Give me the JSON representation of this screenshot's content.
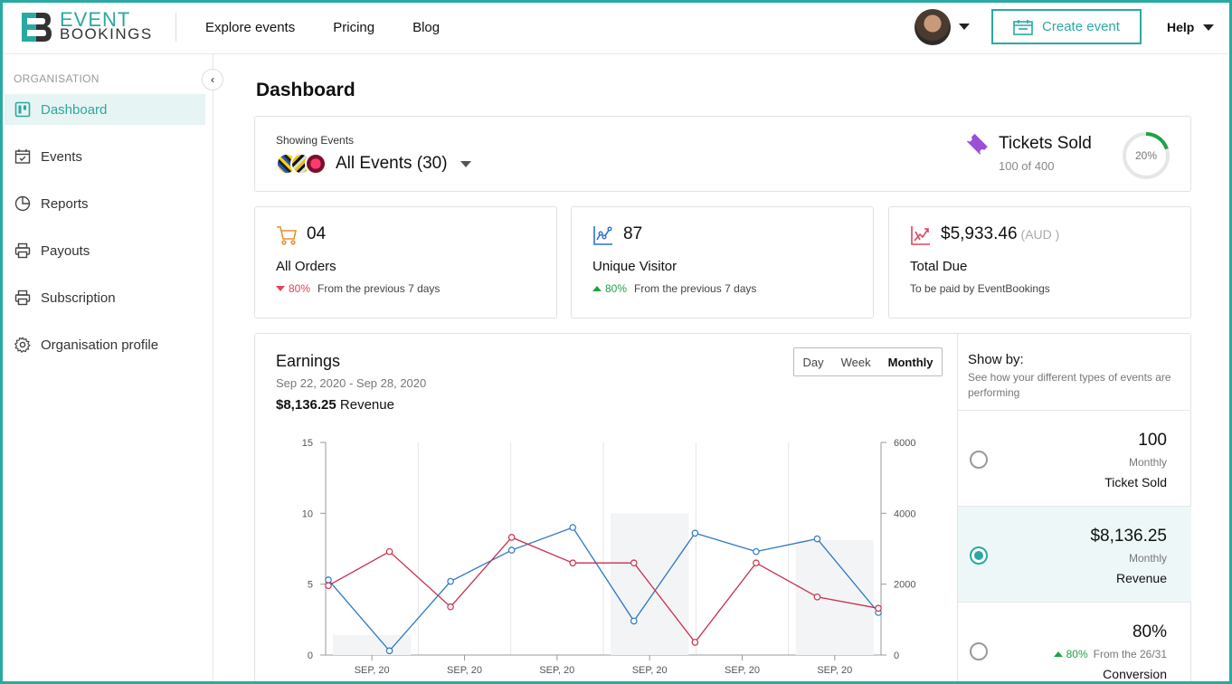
{
  "header": {
    "logo_line1": "EVENT",
    "logo_line2": "BOOKINGS",
    "nav": [
      "Explore events",
      "Pricing",
      "Blog"
    ],
    "create_label": "Create event",
    "help_label": "Help"
  },
  "sidebar": {
    "section_label": "ORGANISATION",
    "items": [
      {
        "label": "Dashboard",
        "icon": "dashboard-icon",
        "active": true
      },
      {
        "label": "Events",
        "icon": "calendar-icon"
      },
      {
        "label": "Reports",
        "icon": "pie-chart-icon"
      },
      {
        "label": "Payouts",
        "icon": "printer-icon"
      },
      {
        "label": "Subscription",
        "icon": "printer-icon"
      },
      {
        "label": "Organisation profile",
        "icon": "gear-icon"
      }
    ]
  },
  "page": {
    "title": "Dashboard"
  },
  "showing": {
    "label": "Showing Events",
    "selected": "All Events (30)"
  },
  "tickets": {
    "title": "Tickets Sold",
    "sub": "100 of 400",
    "percent_label": "20%",
    "progress": 0.2
  },
  "stats": [
    {
      "value": "04",
      "unit": "",
      "label": "All Orders",
      "trend": "down",
      "pct": "80%",
      "sub": "From the previous 7 days",
      "color": "#e8902c"
    },
    {
      "value": "87",
      "unit": "",
      "label": "Unique Visitor",
      "trend": "up",
      "pct": "80%",
      "sub": "From the previous 7 days",
      "color": "#2d6fd6"
    },
    {
      "value": "$5,933.46",
      "unit": "(AUD )",
      "label": "Total Due",
      "trend": "none",
      "pct": "",
      "sub": "To be paid by EventBookings",
      "color": "#e0435b"
    }
  ],
  "earnings": {
    "title": "Earnings",
    "range": "Sep 22, 2020 - Sep 28, 2020",
    "revenue_value": "$8,136.25",
    "revenue_word": "Revenue",
    "periods": [
      "Day",
      "Week",
      "Monthly"
    ],
    "selected_period": "Monthly"
  },
  "chart_data": {
    "type": "line",
    "x_labels": [
      "SEP, 20",
      "SEP, 20",
      "SEP, 20",
      "SEP, 20",
      "SEP, 20",
      "SEP, 20"
    ],
    "y_left": {
      "min": 0,
      "max": 15,
      "ticks": [
        0,
        5,
        10,
        15
      ]
    },
    "y_right": {
      "min": 0,
      "max": 6000,
      "ticks": [
        0,
        2000,
        4000,
        6000
      ]
    },
    "bars": [
      {
        "slot": 0,
        "value": 1.4
      },
      {
        "slot": 3,
        "value": 10
      },
      {
        "slot": 5,
        "value": 8.1
      }
    ],
    "series": [
      {
        "color": "#2b78c2",
        "values": [
          5.3,
          0.3,
          5.2,
          7.4,
          9.0,
          2.4,
          8.6,
          7.3,
          8.2,
          3.0
        ]
      },
      {
        "color": "#c9304f",
        "values": [
          4.9,
          7.3,
          3.4,
          8.3,
          6.5,
          6.5,
          0.9,
          6.5,
          4.1,
          3.3
        ]
      }
    ],
    "grid": true
  },
  "showby": {
    "title": "Show by:",
    "desc": "See how your different types of events are performing",
    "options": [
      {
        "value": "100",
        "period": "Monthly",
        "name": "Ticket Sold",
        "selected": false
      },
      {
        "value": "$8,136.25",
        "period": "Monthly",
        "name": "Revenue",
        "selected": true
      },
      {
        "value": "80%",
        "period": "80%",
        "period_sub": "From the 26/31",
        "name": "Conversion",
        "selected": false
      }
    ]
  },
  "colors": {
    "accent": "#2aa9a1",
    "red": "#e0435b",
    "green": "#22a146",
    "purple": "#9b4fd6"
  }
}
